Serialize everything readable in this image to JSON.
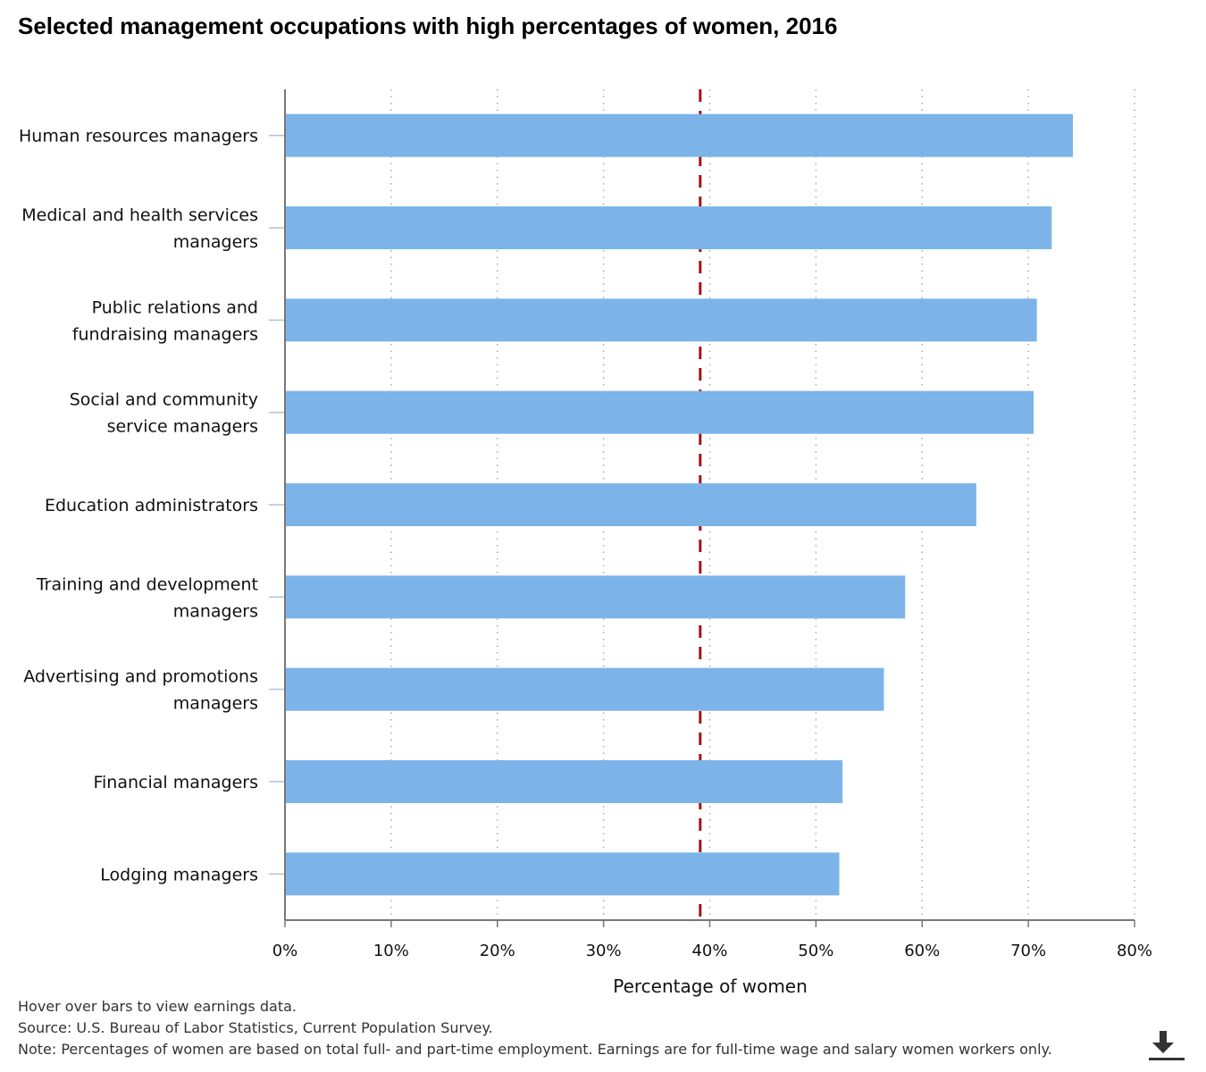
{
  "chart_data": {
    "type": "bar",
    "orientation": "horizontal",
    "title": "Selected management occupations with high percentages of women, 2016",
    "xlabel": "Percentage of women",
    "ylabel": "",
    "xlim": [
      0,
      80
    ],
    "x_ticks": [
      "0%",
      "10%",
      "20%",
      "30%",
      "40%",
      "50%",
      "60%",
      "70%",
      "80%"
    ],
    "categories": [
      [
        "Human resources managers"
      ],
      [
        "Medical and health services",
        "managers"
      ],
      [
        "Public relations and",
        "fundraising managers"
      ],
      [
        "Social and community",
        "service managers"
      ],
      [
        "Education administrators"
      ],
      [
        "Training and development",
        "managers"
      ],
      [
        "Advertising and promotions",
        "managers"
      ],
      [
        "Financial managers"
      ],
      [
        "Lodging managers"
      ]
    ],
    "values": [
      74.2,
      72.2,
      70.8,
      70.5,
      65.1,
      58.4,
      56.4,
      52.5,
      52.2
    ],
    "reference_line": {
      "value": 39.1,
      "style": "dashed"
    },
    "grid": true,
    "colors": {
      "bar": "#7cb4e9",
      "reference_line": "#a31515",
      "axis": "#777777",
      "grid": "#aaaaaa"
    }
  },
  "notes": {
    "hover": "Hover over bars to view earnings data.",
    "source": "Source: U.S. Bureau of Labor Statistics, Current Population Survey.",
    "note": "Note: Percentages of women are based on total full- and part-time employment. Earnings are for full-time wage and salary women workers only."
  },
  "download": {
    "icon": "download-icon"
  }
}
